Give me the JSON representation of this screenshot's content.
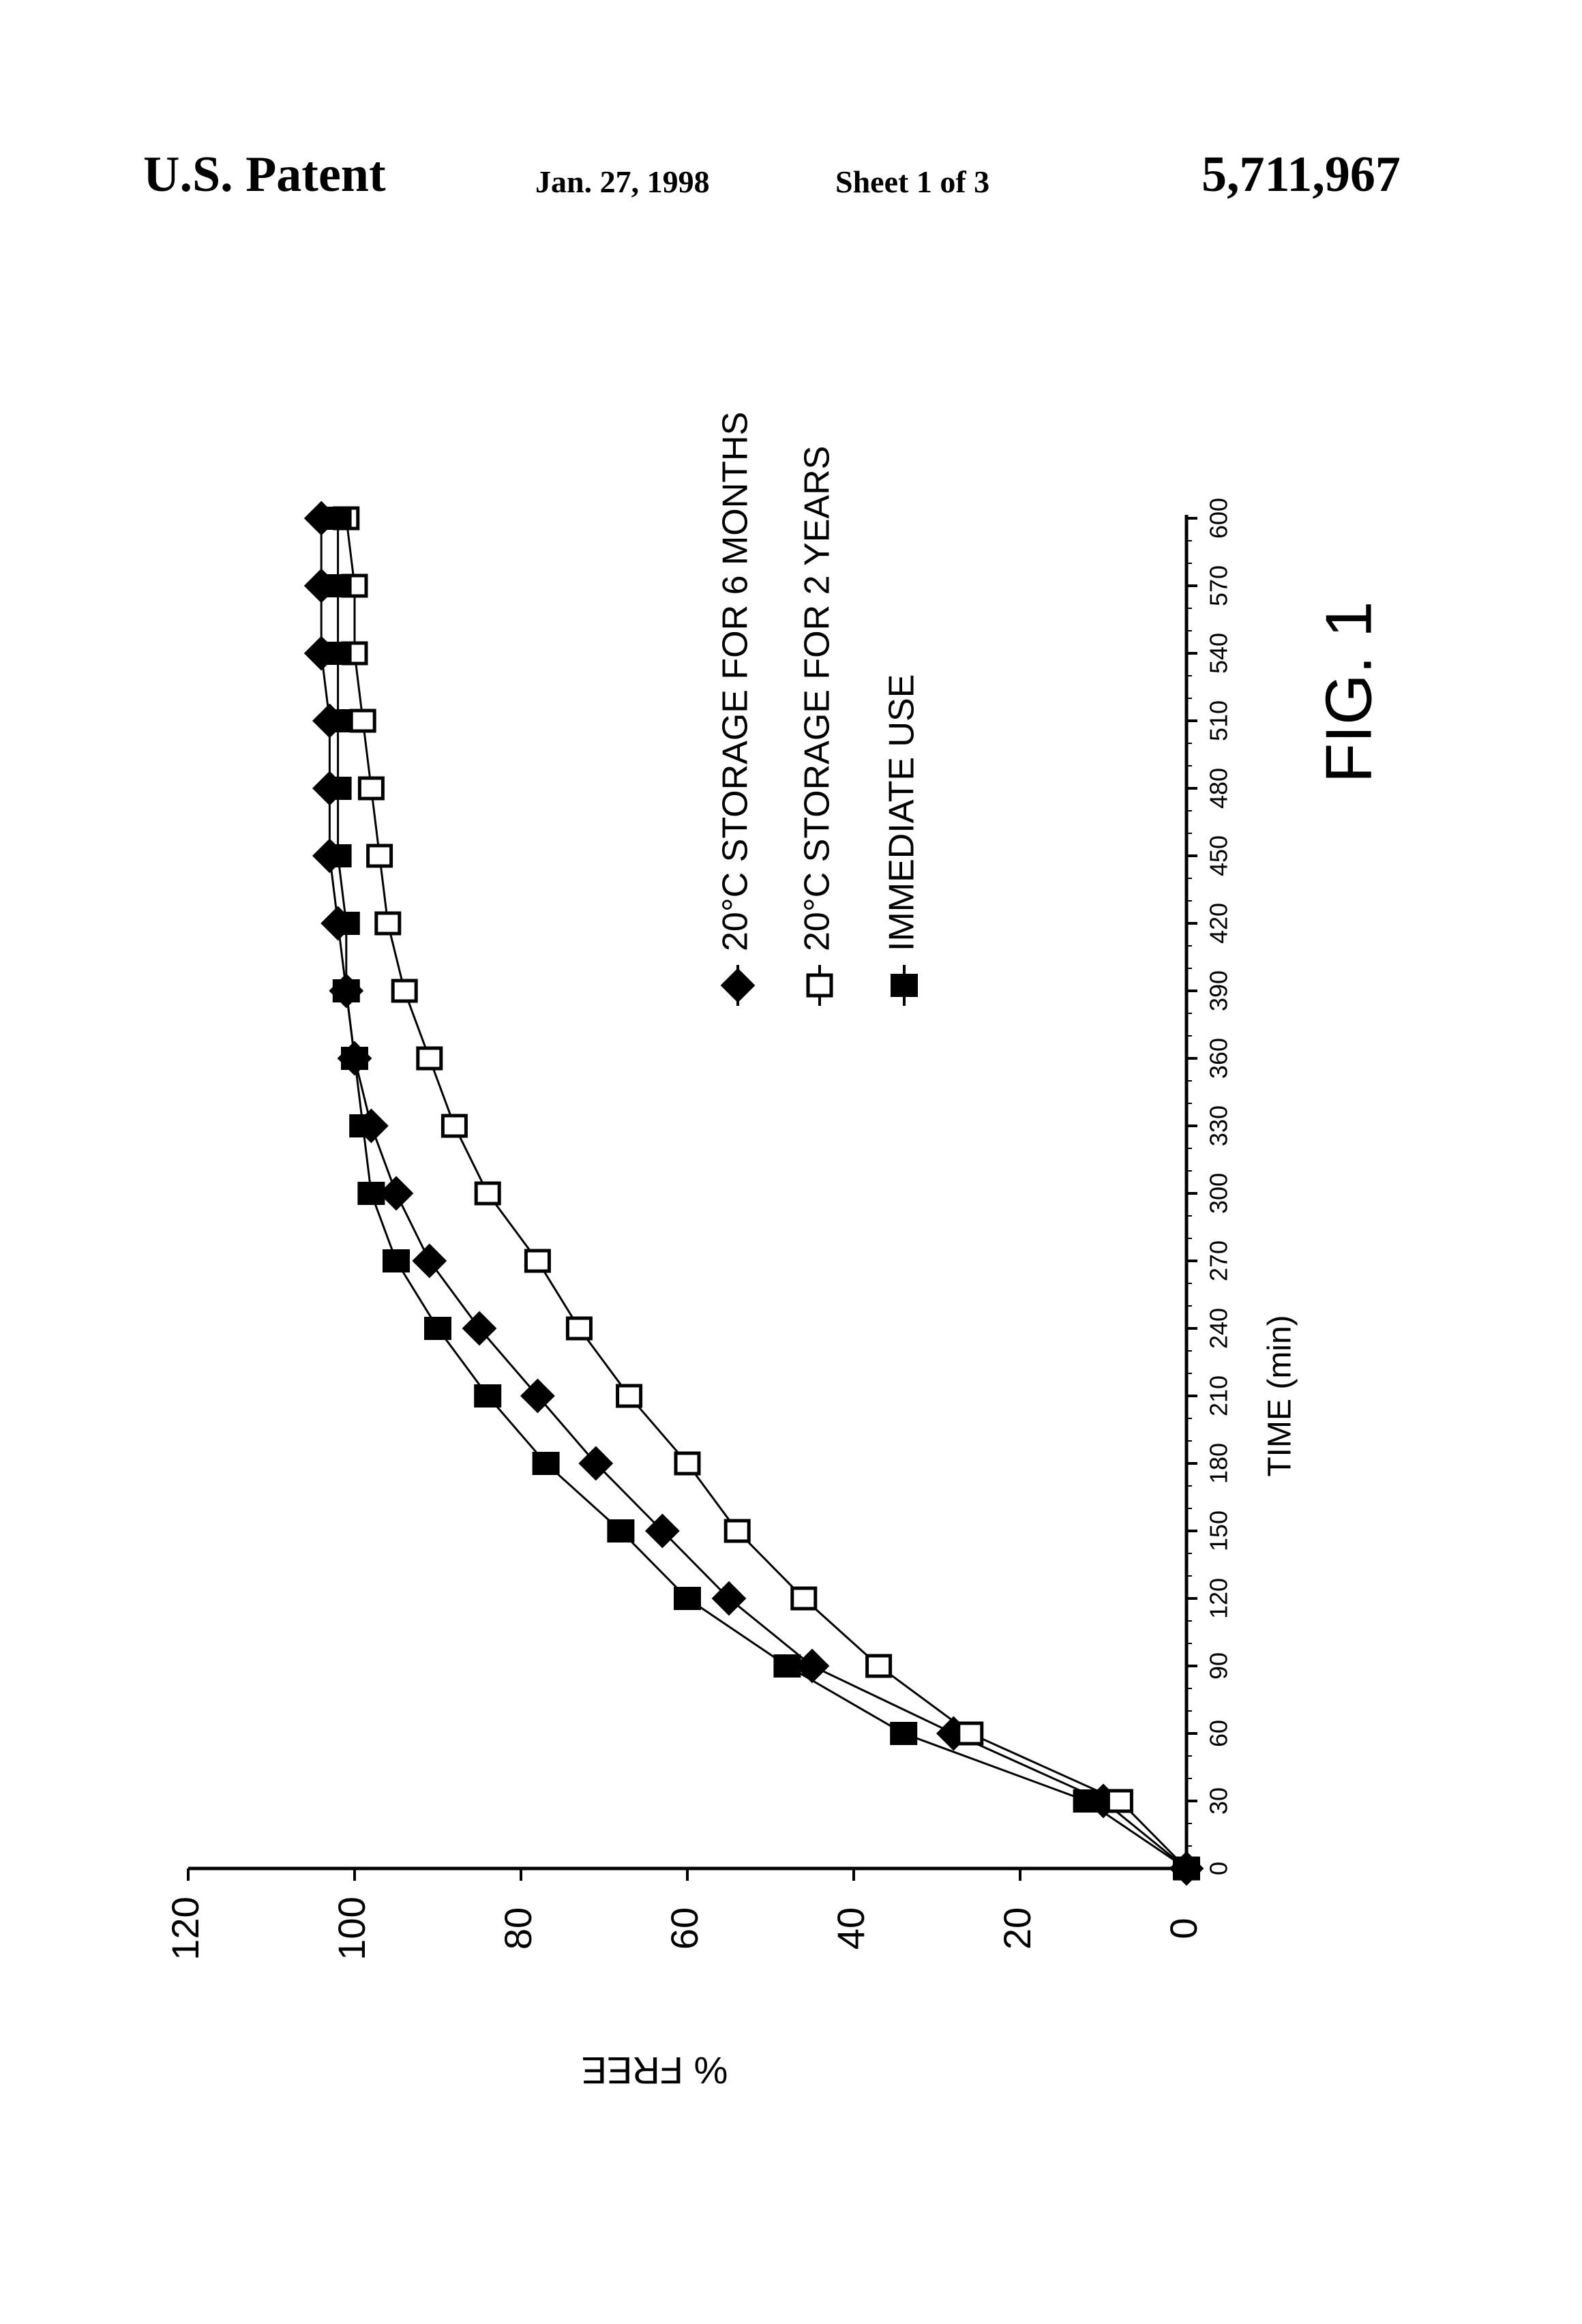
{
  "header": {
    "left": "U.S. Patent",
    "date": "Jan. 27, 1998",
    "sheet": "Sheet 1 of 3",
    "number": "5,711,967"
  },
  "figure": {
    "label": "FIG. 1"
  },
  "chart_data": {
    "type": "line",
    "xlabel": "TIME (min)",
    "ylabel": "% FREE",
    "xlim": [
      0,
      600
    ],
    "ylim": [
      0,
      120
    ],
    "x_ticks": [
      0,
      30,
      60,
      90,
      120,
      150,
      180,
      210,
      240,
      270,
      300,
      330,
      360,
      390,
      420,
      450,
      480,
      510,
      540,
      570,
      600
    ],
    "y_ticks": [
      0,
      20,
      40,
      60,
      80,
      100,
      120
    ],
    "grid": false,
    "orientation": "page rotated 90 degrees counter-clockwise",
    "legend_position": "right of plot, under the curves",
    "x": [
      0,
      30,
      60,
      90,
      120,
      150,
      180,
      210,
      240,
      270,
      300,
      330,
      360,
      390,
      420,
      450,
      480,
      510,
      540,
      570,
      600
    ],
    "series": [
      {
        "name": "20°C STORAGE FOR 6 MONTHS",
        "marker": "diamond-filled",
        "values": [
          0,
          10,
          28,
          45,
          55,
          63,
          71,
          78,
          85,
          91,
          95,
          98,
          100,
          101,
          102,
          103,
          103,
          103,
          104,
          104,
          104
        ]
      },
      {
        "name": "20°C STORAGE FOR 2 YEARS",
        "marker": "square-open",
        "values": [
          0,
          8,
          26,
          37,
          46,
          54,
          60,
          67,
          73,
          78,
          84,
          88,
          91,
          94,
          96,
          97,
          98,
          99,
          100,
          100,
          101
        ]
      },
      {
        "name": "IMMEDIATE USE",
        "marker": "square-filled",
        "values": [
          0,
          12,
          34,
          48,
          60,
          68,
          77,
          84,
          90,
          95,
          98,
          99,
          100,
          101,
          101,
          102,
          102,
          102,
          102,
          102,
          102
        ]
      }
    ]
  }
}
